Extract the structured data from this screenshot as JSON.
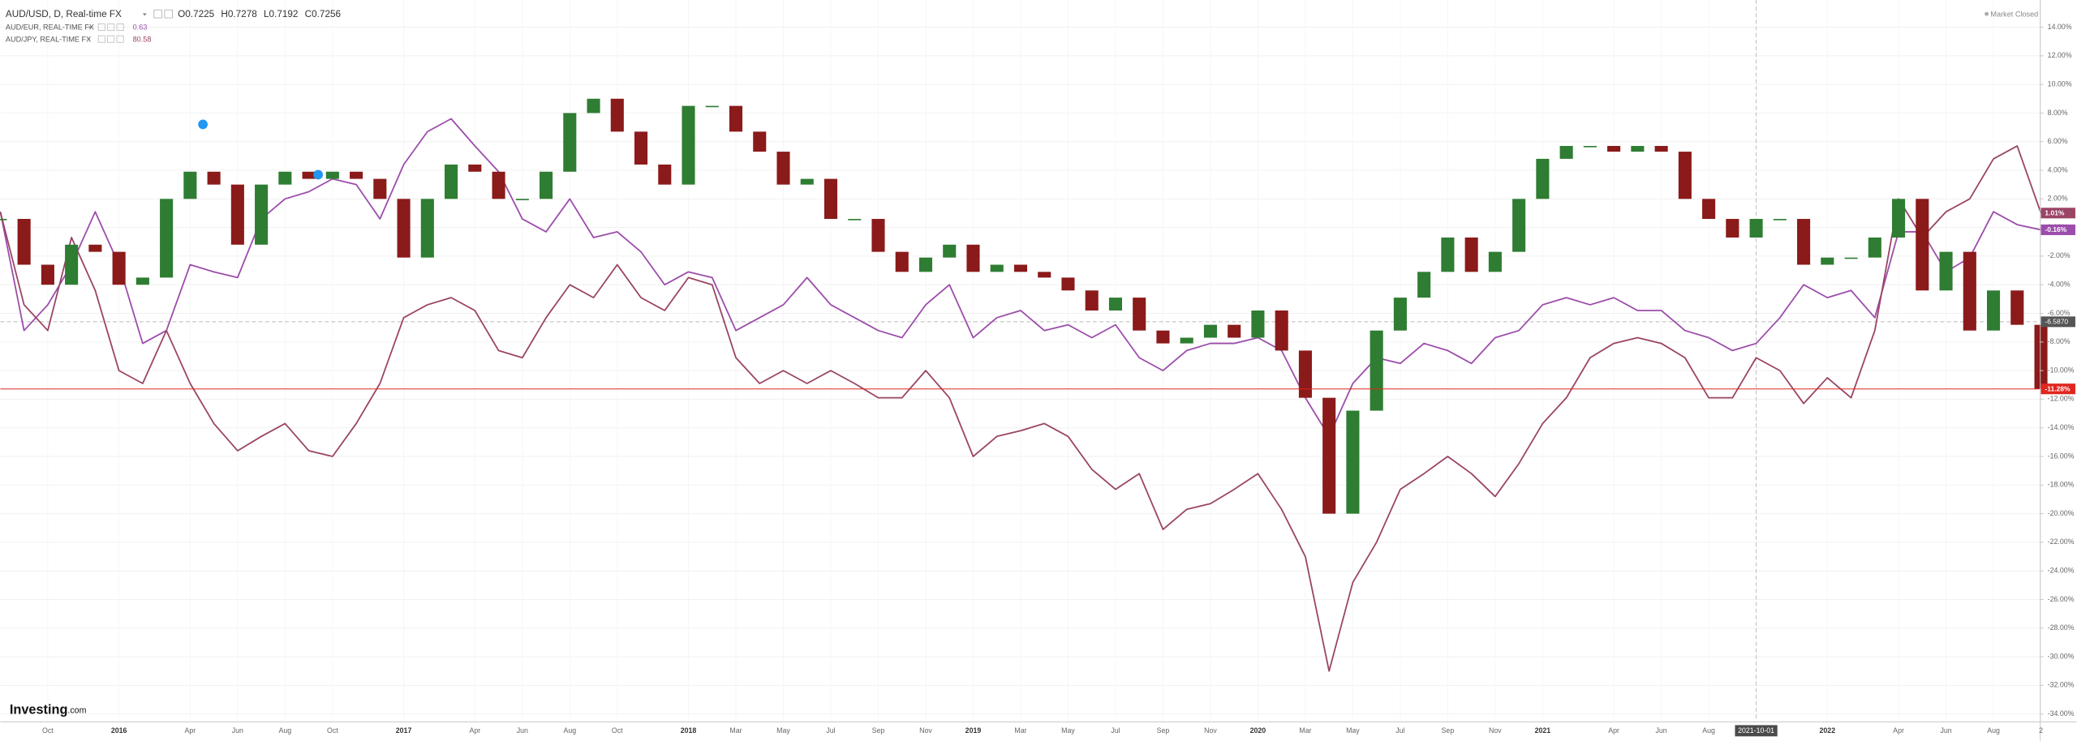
{
  "chart_data": {
    "type": "line",
    "header": {
      "ohlc_labels": [
        "O",
        "H",
        "L",
        "C"
      ],
      "ohlc_values": [
        0.7225,
        0.7278,
        0.7192,
        0.7256
      ]
    },
    "status": "Market Closed",
    "brand": "Investing",
    "brand_suffix": ".com",
    "categories": [
      null,
      null,
      "Oct",
      null,
      null,
      "2016",
      null,
      null,
      "Apr",
      null,
      "Jun",
      null,
      "Aug",
      null,
      "Oct",
      null,
      null,
      "2017",
      null,
      null,
      "Apr",
      null,
      "Jun",
      null,
      "Aug",
      null,
      "Oct",
      null,
      null,
      "2018",
      null,
      "Mar",
      null,
      "May",
      null,
      "Jul",
      null,
      "Sep",
      null,
      "Nov",
      null,
      "2019",
      null,
      "Mar",
      null,
      "May",
      null,
      "Jul",
      null,
      "Sep",
      null,
      "Nov",
      null,
      "2020",
      null,
      "Mar",
      null,
      "May",
      null,
      "Jul",
      null,
      "Sep",
      null,
      "Nov",
      null,
      "2021",
      null,
      null,
      "Apr",
      null,
      "Jun",
      null,
      "Aug",
      null,
      "2021-10-01",
      null,
      null,
      "2022",
      null,
      null,
      "Apr",
      null,
      "Jun",
      null,
      "Aug",
      null,
      "2"
    ],
    "crosshair_x": "2021-10-01",
    "crosshair_y": {
      "value": -6.587,
      "label": "-6.5870"
    },
    "price_line_color": "#e0261f",
    "series": [
      {
        "name": "AUD/USD, D, Real-time FX",
        "style": "candle",
        "color": "#8b1a1a",
        "up_color": "#2e7d32",
        "last_value_label": "-11.28%",
        "values": [
          0.6,
          -2.6,
          -4,
          -1.2,
          -1.7,
          -4,
          -3.5,
          2,
          3.9,
          3,
          -1.2,
          3,
          3.9,
          3.4,
          3.9,
          3.4,
          2,
          -2.1,
          2,
          4.4,
          3.9,
          2,
          2,
          3.9,
          8,
          9,
          6.7,
          4.4,
          3,
          8.5,
          8.5,
          6.7,
          5.3,
          3,
          3.4,
          0.6,
          0.6,
          -1.7,
          -3.1,
          -2.1,
          -1.2,
          -3.1,
          -2.6,
          -3.1,
          -3.5,
          -4.4,
          -5.8,
          -4.9,
          -7.2,
          -8.1,
          -7.7,
          -6.8,
          -7.7,
          -5.8,
          -8.6,
          -11.9,
          -20,
          -12.8,
          -7.2,
          -4.9,
          -3.1,
          -0.7,
          -3.1,
          -1.7,
          2,
          4.8,
          5.7,
          5.7,
          5.3,
          5.7,
          5.3,
          2,
          0.6,
          -0.7,
          0.6,
          0.6,
          -2.6,
          -2.1,
          -2.1,
          -0.7,
          2,
          -4.4,
          -1.7,
          -7.2,
          -4.4,
          -6.8,
          -11.28
        ]
      },
      {
        "name": "AUD/EUR, REAL-TIME FX",
        "style": "line",
        "color": "#9c4dab",
        "legend_value": 0.63,
        "last_value_label": "-0.16%",
        "values": [
          1.1,
          -7.2,
          -5.4,
          -2.6,
          1.1,
          -2.6,
          -8.1,
          -7.2,
          -2.6,
          -3.1,
          -3.5,
          0.6,
          2,
          2.5,
          3.4,
          3,
          0.6,
          4.4,
          6.7,
          7.6,
          5.7,
          3.9,
          0.6,
          -0.3,
          2,
          -0.7,
          -0.3,
          -1.7,
          -4,
          -3.1,
          -3.5,
          -7.2,
          -6.3,
          -5.4,
          -3.5,
          -5.4,
          -6.3,
          -7.2,
          -7.7,
          -5.4,
          -4,
          -7.7,
          -6.3,
          -5.8,
          -7.2,
          -6.8,
          -7.7,
          -6.8,
          -9.1,
          -10,
          -8.6,
          -8.1,
          -8.1,
          -7.7,
          -8.6,
          -11.9,
          -14.6,
          -10.9,
          -9.1,
          -9.5,
          -8.1,
          -8.6,
          -9.5,
          -7.7,
          -7.2,
          -5.4,
          -4.9,
          -5.4,
          -4.9,
          -5.8,
          -5.8,
          -7.2,
          -7.7,
          -8.6,
          -8.1,
          -6.3,
          -4,
          -4.9,
          -4.4,
          -6.3,
          -0.3,
          -0.3,
          -3.1,
          -2.1,
          1.1,
          0.2,
          -0.16
        ]
      },
      {
        "name": "AUD/JPY, REAL-TIME FX",
        "style": "line",
        "color": "#9a4466",
        "legend_value": 80.58,
        "last_value_label": "1.01%",
        "values": [
          1.1,
          -5.4,
          -7.2,
          -0.7,
          -4.4,
          -10,
          -10.9,
          -7.2,
          -10.9,
          -13.7,
          -15.6,
          -14.6,
          -13.7,
          -15.6,
          -16,
          -13.7,
          -10.9,
          -6.3,
          -5.4,
          -4.9,
          -5.8,
          -8.6,
          -9.1,
          -6.3,
          -4,
          -4.9,
          -2.6,
          -4.9,
          -5.8,
          -3.5,
          -4,
          -9.1,
          -10.9,
          -10,
          -10.9,
          -10,
          -10.9,
          -11.9,
          -11.9,
          -10,
          -11.9,
          -16,
          -14.6,
          -14.2,
          -13.7,
          -14.6,
          -16.9,
          -18.3,
          -17.2,
          -21.1,
          -19.7,
          -19.3,
          -18.3,
          -17.2,
          -19.7,
          -23,
          -31,
          -24.8,
          -22,
          -18.3,
          -17.2,
          -16,
          -17.2,
          -18.8,
          -16.5,
          -13.7,
          -11.9,
          -9.1,
          -8.1,
          -7.7,
          -8.1,
          -9.1,
          -11.9,
          -11.9,
          -9.1,
          -10,
          -12.3,
          -10.5,
          -11.9,
          -7.2,
          2,
          -0.7,
          1.1,
          2,
          4.8,
          5.7,
          1.01
        ]
      }
    ],
    "ylim": [
      -34.5,
      15.9
    ],
    "yticks": [
      {
        "value": 14,
        "label": "14.00%"
      },
      {
        "value": 12,
        "label": "12.00%"
      },
      {
        "value": 10,
        "label": "10.00%"
      },
      {
        "value": 8,
        "label": "8.00%"
      },
      {
        "value": 6,
        "label": "6.00%"
      },
      {
        "value": 4,
        "label": "4.00%"
      },
      {
        "value": 2,
        "label": "2.00%"
      },
      {
        "value": 0,
        "label": "0.00%"
      },
      {
        "value": -2,
        "label": "-2.00%"
      },
      {
        "value": -4,
        "label": "-4.00%"
      },
      {
        "value": -6,
        "label": "-6.00%"
      },
      {
        "value": -8,
        "label": "-8.00%"
      },
      {
        "value": -10,
        "label": "-10.00%"
      },
      {
        "value": -12,
        "label": "-12.00%"
      },
      {
        "value": -14,
        "label": "-14.00%"
      },
      {
        "value": -16,
        "label": "-16.00%"
      },
      {
        "value": -18,
        "label": "-18.00%"
      },
      {
        "value": -20,
        "label": "-20.00%"
      },
      {
        "value": -22,
        "label": "-22.00%"
      },
      {
        "value": -24,
        "label": "-24.00%"
      },
      {
        "value": -26,
        "label": "-26.00%"
      },
      {
        "value": -28,
        "label": "-28.00%"
      },
      {
        "value": -30,
        "label": "-30.00%"
      },
      {
        "value": -32,
        "label": "-32.00%"
      },
      {
        "value": -34,
        "label": "-34.00%"
      }
    ],
    "grid": true
  }
}
